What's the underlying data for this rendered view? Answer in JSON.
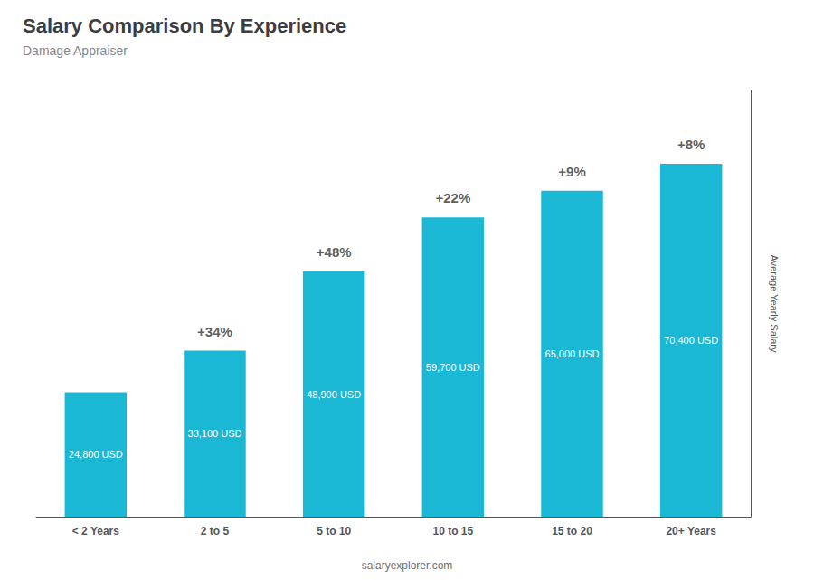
{
  "chart_data": {
    "type": "bar",
    "title": "Salary Comparison By Experience",
    "subtitle": "Damage Appraiser",
    "ylabel": "Average Yearly Salary",
    "watermark": "salaryexplorer.com",
    "categories": [
      "< 2 Years",
      "2 to 5",
      "5 to 10",
      "10 to 15",
      "15 to 20",
      "20+ Years"
    ],
    "values": [
      24800,
      33100,
      48900,
      59700,
      65000,
      70400
    ],
    "value_labels": [
      "24,800 USD",
      "33,100 USD",
      "48,900 USD",
      "59,700 USD",
      "65,000 USD",
      "70,400 USD"
    ],
    "data_labels": true,
    "color": "#1ab8d4",
    "ylim": [
      0,
      85000
    ],
    "tick_labels": "x",
    "grid": false,
    "annotations": [
      {
        "category": "2 to 5",
        "text": "+34%"
      },
      {
        "category": "5 to 10",
        "text": "+48%"
      },
      {
        "category": "10 to 15",
        "text": "+22%"
      },
      {
        "category": "15 to 20",
        "text": "+9%"
      },
      {
        "category": "20+ Years",
        "text": "+8%"
      }
    ]
  }
}
